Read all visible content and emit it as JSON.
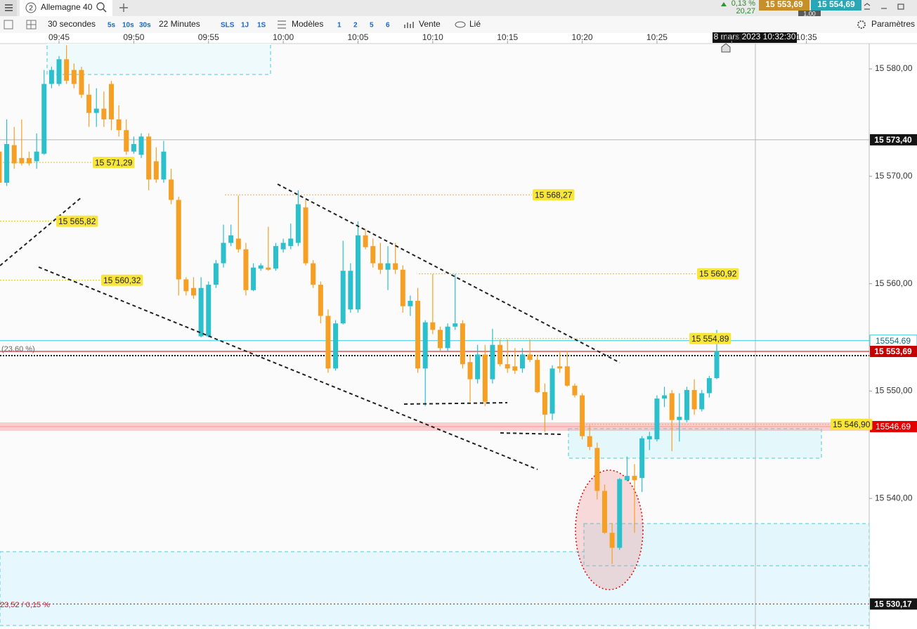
{
  "header": {
    "tab_number": "2",
    "instrument": "Allemagne 40",
    "change_pct": "0,13 %",
    "change": "20,27",
    "bid": "15 553,69",
    "spread": "1,00",
    "ask": "15 554,69"
  },
  "toolbar": {
    "interval": "30 secondes",
    "intervals": [
      "5s",
      "10s",
      "30s"
    ],
    "duration": "22 Minutes",
    "ranges": [
      "SLS",
      "1J",
      "1S"
    ],
    "models": "Modèles",
    "layouts": [
      "1",
      "2",
      "5",
      "6"
    ],
    "order": "Vente",
    "link": "Lié",
    "settings": "Paramètres"
  },
  "chart_data": {
    "type": "candlestick",
    "up_color": "#2cc0cc",
    "down_color": "#f5a024",
    "xlim": [
      581.05,
      639.2
    ],
    "xticks": [
      {
        "value": 585,
        "label": "09:45"
      },
      {
        "value": 590,
        "label": "09:50"
      },
      {
        "value": 595,
        "label": "09:55"
      },
      {
        "value": 600,
        "label": "10:00"
      },
      {
        "value": 605,
        "label": "10:05"
      },
      {
        "value": 610,
        "label": "10:10"
      },
      {
        "value": 615,
        "label": "10:15"
      },
      {
        "value": 620,
        "label": "10:20"
      },
      {
        "value": 625,
        "label": "10:25"
      },
      {
        "value": 630,
        "label": "10:30"
      },
      {
        "value": 635,
        "label": "10:35"
      }
    ],
    "ylim": [
      15527.84,
      15582.36
    ],
    "yticks": [
      {
        "value": 15540,
        "label": "15 540,00"
      },
      {
        "value": 15550,
        "label": "15 550,00"
      },
      {
        "value": 15560,
        "label": "15 560,00"
      },
      {
        "value": 15570,
        "label": "15 570,00"
      },
      {
        "value": 15580,
        "label": "15 580,00"
      }
    ],
    "crosshair_time": "8 mars 2023 10:32:30",
    "levels": [
      {
        "value": 15571.29,
        "label": "15 571,29"
      },
      {
        "value": 15565.82,
        "label": "15 565,82"
      },
      {
        "value": 15560.32,
        "label": "15 560,32"
      },
      {
        "value": 15568.27,
        "label": "15 568,27"
      },
      {
        "value": 15560.92,
        "label": "15 560,92"
      },
      {
        "value": 15554.89,
        "label": "15 554,89"
      },
      {
        "value": 15546.9,
        "label": "15 546,90"
      }
    ],
    "price_tags": [
      {
        "value": 15573.4,
        "label": "15 573,40"
      },
      {
        "value": 15554.69,
        "label": "15554.69"
      },
      {
        "value": 15553.69,
        "label": "15 553,69"
      },
      {
        "value": 15546.69,
        "label": "15546.69"
      },
      {
        "value": 15530.17,
        "label": "15 530,17"
      }
    ],
    "annotations": [
      "(23.60 %)",
      "23,52 / 0,15 %"
    ],
    "candles": [
      {
        "x": 581,
        "open": 15572.3,
        "high": 15574.3,
        "low": 15568.7,
        "close": 15569.4
      },
      {
        "x": 581.5,
        "open": 15569.4,
        "high": 15575.3,
        "low": 15569.1,
        "close": 15573.0
      },
      {
        "x": 582,
        "open": 15572.9,
        "high": 15574.6,
        "low": 15570.7,
        "close": 15571.2
      },
      {
        "x": 582.5,
        "open": 15571.7,
        "high": 15575.3,
        "low": 15571.0,
        "close": 15571.2
      },
      {
        "x": 583,
        "open": 15571.7,
        "high": 15572.3,
        "low": 15571.0,
        "close": 15571.2
      },
      {
        "x": 583.5,
        "open": 15571.4,
        "high": 15574.0,
        "low": 15570.7,
        "close": 15572.3
      },
      {
        "x": 584,
        "open": 15572.1,
        "high": 15579.9,
        "low": 15572.0,
        "close": 15578.6
      },
      {
        "x": 584.5,
        "open": 15578.6,
        "high": 15580.2,
        "low": 15578.2,
        "close": 15579.9
      },
      {
        "x": 585,
        "open": 15578.6,
        "high": 15581.2,
        "low": 15578.4,
        "close": 15580.9
      },
      {
        "x": 585.5,
        "open": 15580.9,
        "high": 15582.2,
        "low": 15578.6,
        "close": 15578.9
      },
      {
        "x": 586,
        "open": 15579.9,
        "high": 15580.5,
        "low": 15578.2,
        "close": 15578.6
      },
      {
        "x": 586.5,
        "open": 15579.9,
        "high": 15580.2,
        "low": 15577.3,
        "close": 15577.6
      },
      {
        "x": 587,
        "open": 15577.6,
        "high": 15578.6,
        "low": 15574.6,
        "close": 15575.9
      },
      {
        "x": 587.5,
        "open": 15575.9,
        "high": 15578.2,
        "low": 15574.6,
        "close": 15576.3
      },
      {
        "x": 588,
        "open": 15576.3,
        "high": 15577.9,
        "low": 15574.6,
        "close": 15575.3
      },
      {
        "x": 588.5,
        "open": 15578.6,
        "high": 15578.9,
        "low": 15574.3,
        "close": 15575.3
      },
      {
        "x": 589,
        "open": 15575.3,
        "high": 15576.6,
        "low": 15573.7,
        "close": 15574.3
      },
      {
        "x": 589.5,
        "open": 15574.3,
        "high": 15575.3,
        "low": 15572.0,
        "close": 15572.3
      },
      {
        "x": 590,
        "open": 15572.3,
        "high": 15573.7,
        "low": 15572.1,
        "close": 15573.0
      },
      {
        "x": 590.5,
        "open": 15572.0,
        "high": 15574.0,
        "low": 15571.7,
        "close": 15573.7
      },
      {
        "x": 591,
        "open": 15573.7,
        "high": 15574.0,
        "low": 15568.7,
        "close": 15569.7
      },
      {
        "x": 591.5,
        "open": 15571.4,
        "high": 15572.7,
        "low": 15569.4,
        "close": 15569.7
      },
      {
        "x": 592,
        "open": 15569.7,
        "high": 15573.3,
        "low": 15569.4,
        "close": 15572.3
      },
      {
        "x": 592.5,
        "open": 15569.7,
        "high": 15570.7,
        "low": 15567.4,
        "close": 15567.8
      },
      {
        "x": 593,
        "open": 15567.8,
        "high": 15568.1,
        "low": 15558.9,
        "close": 15560.4
      },
      {
        "x": 593.5,
        "open": 15560.4,
        "high": 15560.6,
        "low": 15558.9,
        "close": 15559.3
      },
      {
        "x": 594,
        "open": 15559.6,
        "high": 15560.6,
        "low": 15558.6,
        "close": 15558.9
      },
      {
        "x": 594.5,
        "open": 15555.1,
        "high": 15560.6,
        "low": 15555.0,
        "close": 15559.6
      },
      {
        "x": 595,
        "open": 15555.1,
        "high": 15560.2,
        "low": 15555.0,
        "close": 15559.9
      },
      {
        "x": 595.5,
        "open": 15559.9,
        "high": 15562.2,
        "low": 15559.6,
        "close": 15561.9
      },
      {
        "x": 596,
        "open": 15561.9,
        "high": 15565.5,
        "low": 15561.5,
        "close": 15563.8
      },
      {
        "x": 596.5,
        "open": 15563.8,
        "high": 15565.5,
        "low": 15563.5,
        "close": 15564.5
      },
      {
        "x": 597,
        "open": 15564.2,
        "high": 15568.2,
        "low": 15562.9,
        "close": 15563.2
      },
      {
        "x": 597.5,
        "open": 15563.2,
        "high": 15563.8,
        "low": 15558.9,
        "close": 15559.4
      },
      {
        "x": 598,
        "open": 15559.4,
        "high": 15561.9,
        "low": 15559.3,
        "close": 15561.5
      },
      {
        "x": 598.5,
        "open": 15561.4,
        "high": 15561.9,
        "low": 15561.2,
        "close": 15561.7
      },
      {
        "x": 599,
        "open": 15561.5,
        "high": 15565.3,
        "low": 15561.2,
        "close": 15561.3
      },
      {
        "x": 599.5,
        "open": 15561.4,
        "high": 15563.8,
        "low": 15561.2,
        "close": 15563.5
      },
      {
        "x": 600,
        "open": 15563.2,
        "high": 15564.2,
        "low": 15562.9,
        "close": 15563.8
      },
      {
        "x": 600.5,
        "open": 15563.5,
        "high": 15565.6,
        "low": 15563.2,
        "close": 15564.2
      },
      {
        "x": 601,
        "open": 15563.8,
        "high": 15568.7,
        "low": 15563.5,
        "close": 15567.4
      },
      {
        "x": 601.5,
        "open": 15567.1,
        "high": 15567.8,
        "low": 15561.7,
        "close": 15561.9
      },
      {
        "x": 602,
        "open": 15561.9,
        "high": 15562.2,
        "low": 15559.6,
        "close": 15559.9
      },
      {
        "x": 602.5,
        "open": 15559.9,
        "high": 15560.2,
        "low": 15556.3,
        "close": 15557.0
      },
      {
        "x": 603,
        "open": 15557.0,
        "high": 15557.6,
        "low": 15551.7,
        "close": 15552.1
      },
      {
        "x": 603.5,
        "open": 15552.1,
        "high": 15556.6,
        "low": 15551.9,
        "close": 15556.3
      },
      {
        "x": 604,
        "open": 15556.3,
        "high": 15564.0,
        "low": 15556.2,
        "close": 15561.2
      },
      {
        "x": 604.5,
        "open": 15557.6,
        "high": 15561.9,
        "low": 15557.3,
        "close": 15561.2
      },
      {
        "x": 605,
        "open": 15557.6,
        "high": 15565.8,
        "low": 15557.3,
        "close": 15564.5
      },
      {
        "x": 605.5,
        "open": 15564.5,
        "high": 15565.1,
        "low": 15563.2,
        "close": 15563.4
      },
      {
        "x": 606,
        "open": 15563.5,
        "high": 15564.2,
        "low": 15561.5,
        "close": 15561.9
      },
      {
        "x": 606.5,
        "open": 15561.9,
        "high": 15563.8,
        "low": 15560.9,
        "close": 15561.3
      },
      {
        "x": 607,
        "open": 15561.3,
        "high": 15563.5,
        "low": 15559.4,
        "close": 15561.9
      },
      {
        "x": 607.5,
        "open": 15561.9,
        "high": 15563.8,
        "low": 15560.9,
        "close": 15561.3
      },
      {
        "x": 608,
        "open": 15561.3,
        "high": 15561.7,
        "low": 15557.3,
        "close": 15557.9
      },
      {
        "x": 608.5,
        "open": 15557.9,
        "high": 15558.9,
        "low": 15557.0,
        "close": 15558.4
      },
      {
        "x": 609,
        "open": 15558.4,
        "high": 15559.6,
        "low": 15551.7,
        "close": 15552.1
      },
      {
        "x": 609.5,
        "open": 15552.1,
        "high": 15556.6,
        "low": 15548.6,
        "close": 15556.4
      },
      {
        "x": 610,
        "open": 15556.4,
        "high": 15560.9,
        "low": 15555.3,
        "close": 15555.7
      },
      {
        "x": 610.5,
        "open": 15555.7,
        "high": 15556.0,
        "low": 15553.7,
        "close": 15554.0
      },
      {
        "x": 611,
        "open": 15554.0,
        "high": 15556.3,
        "low": 15553.7,
        "close": 15556.0
      },
      {
        "x": 611.5,
        "open": 15556.0,
        "high": 15560.9,
        "low": 15555.7,
        "close": 15556.3
      },
      {
        "x": 612,
        "open": 15556.3,
        "high": 15556.6,
        "low": 15552.1,
        "close": 15552.5
      },
      {
        "x": 612.5,
        "open": 15552.7,
        "high": 15553.4,
        "low": 15549.0,
        "close": 15551.1
      },
      {
        "x": 613,
        "open": 15551.1,
        "high": 15554.3,
        "low": 15550.7,
        "close": 15553.4
      },
      {
        "x": 613.5,
        "open": 15553.4,
        "high": 15554.3,
        "low": 15548.6,
        "close": 15549.0
      },
      {
        "x": 614,
        "open": 15551.1,
        "high": 15555.8,
        "low": 15550.7,
        "close": 15554.3
      },
      {
        "x": 614.5,
        "open": 15554.3,
        "high": 15554.8,
        "low": 15552.3,
        "close": 15552.5
      },
      {
        "x": 615,
        "open": 15552.5,
        "high": 15554.8,
        "low": 15551.7,
        "close": 15552.1
      },
      {
        "x": 615.5,
        "open": 15552.3,
        "high": 15554.0,
        "low": 15551.6,
        "close": 15551.9
      },
      {
        "x": 616,
        "open": 15552.1,
        "high": 15554.0,
        "low": 15551.7,
        "close": 15553.4
      },
      {
        "x": 616.5,
        "open": 15553.4,
        "high": 15554.8,
        "low": 15552.7,
        "close": 15552.9
      },
      {
        "x": 617,
        "open": 15552.9,
        "high": 15553.4,
        "low": 15549.8,
        "close": 15549.9
      },
      {
        "x": 617.5,
        "open": 15549.9,
        "high": 15550.7,
        "low": 15546.2,
        "close": 15547.8
      },
      {
        "x": 618,
        "open": 15547.9,
        "high": 15552.4,
        "low": 15547.3,
        "close": 15552.1
      },
      {
        "x": 618.5,
        "open": 15552.3,
        "high": 15553.7,
        "low": 15551.7,
        "close": 15552.1
      },
      {
        "x": 619,
        "open": 15552.3,
        "high": 15553.7,
        "low": 15550.4,
        "close": 15550.5
      },
      {
        "x": 619.5,
        "open": 15550.5,
        "high": 15550.7,
        "low": 15549.4,
        "close": 15549.6
      },
      {
        "x": 620,
        "open": 15549.6,
        "high": 15549.8,
        "low": 15545.5,
        "close": 15545.8
      },
      {
        "x": 620.5,
        "open": 15545.8,
        "high": 15546.8,
        "low": 15544.5,
        "close": 15544.8
      },
      {
        "x": 621,
        "open": 15544.7,
        "high": 15545.2,
        "low": 15539.9,
        "close": 15540.7
      },
      {
        "x": 621.5,
        "open": 15540.7,
        "high": 15541.3,
        "low": 15536.7,
        "close": 15536.8
      },
      {
        "x": 622,
        "open": 15536.8,
        "high": 15537.7,
        "low": 15533.9,
        "close": 15535.4
      },
      {
        "x": 622.5,
        "open": 15535.4,
        "high": 15541.9,
        "low": 15535.2,
        "close": 15541.8
      },
      {
        "x": 623,
        "open": 15541.7,
        "high": 15543.9,
        "low": 15541.6,
        "close": 15542.1
      },
      {
        "x": 623.5,
        "open": 15542.1,
        "high": 15543.2,
        "low": 15536.8,
        "close": 15541.7
      },
      {
        "x": 624,
        "open": 15541.9,
        "high": 15545.8,
        "low": 15540.6,
        "close": 15545.6
      },
      {
        "x": 624.5,
        "open": 15545.5,
        "high": 15546.2,
        "low": 15544.5,
        "close": 15545.8
      },
      {
        "x": 625,
        "open": 15545.5,
        "high": 15549.6,
        "low": 15545.3,
        "close": 15549.3
      },
      {
        "x": 625.5,
        "open": 15549.3,
        "high": 15550.4,
        "low": 15548.5,
        "close": 15549.6
      },
      {
        "x": 626,
        "open": 15549.8,
        "high": 15550.1,
        "low": 15544.4,
        "close": 15547.3
      },
      {
        "x": 626.5,
        "open": 15547.3,
        "high": 15549.8,
        "low": 15545.3,
        "close": 15547.6
      },
      {
        "x": 627,
        "open": 15547.3,
        "high": 15550.4,
        "low": 15547.1,
        "close": 15550.1
      },
      {
        "x": 627.5,
        "open": 15550.1,
        "high": 15551.1,
        "low": 15547.8,
        "close": 15548.3
      },
      {
        "x": 628,
        "open": 15548.3,
        "high": 15550.1,
        "low": 15548.1,
        "close": 15549.8
      },
      {
        "x": 628.5,
        "open": 15549.8,
        "high": 15551.4,
        "low": 15549.4,
        "close": 15551.2
      },
      {
        "x": 629,
        "open": 15551.2,
        "high": 15555.7,
        "low": 15551.1,
        "close": 15553.7
      }
    ]
  }
}
